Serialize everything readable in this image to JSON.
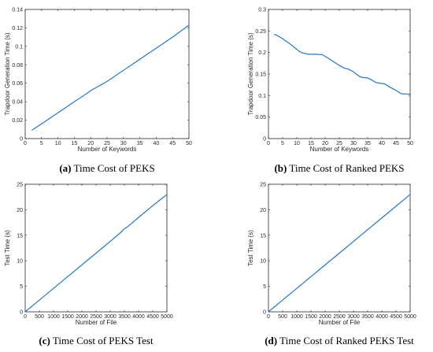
{
  "chart_data": [
    {
      "type": "line",
      "caption_label": "(a)",
      "caption_text": "Time Cost of PEKS",
      "xlabel": "Number of Keywords",
      "ylabel": "Trapdoor Generation Time (s)",
      "xlim": [
        0,
        50
      ],
      "ylim": [
        0,
        0.14
      ],
      "xticks": [
        "0",
        "5",
        "10",
        "15",
        "20",
        "25",
        "30",
        "35",
        "40",
        "45",
        "50"
      ],
      "yticks": [
        "0",
        "0.02",
        "0.04",
        "0.06",
        "0.08",
        "0.1",
        "0.12",
        "0.14"
      ],
      "grid": false,
      "series": [
        {
          "x": [
            2,
            5,
            10,
            15,
            18,
            20,
            22,
            25,
            30,
            35,
            40,
            45,
            50
          ],
          "y": [
            0.009,
            0.016,
            0.028,
            0.04,
            0.047,
            0.052,
            0.056,
            0.062,
            0.074,
            0.086,
            0.098,
            0.11,
            0.123
          ]
        }
      ]
    },
    {
      "type": "line",
      "caption_label": "(b)",
      "caption_text": "Time Cost of Ranked PEKS",
      "xlabel": "Number of Keywords",
      "ylabel": "Trapdoor Generation Time (s)",
      "xlim": [
        0,
        50
      ],
      "ylim": [
        0,
        0.3
      ],
      "xticks": [
        "0",
        "5",
        "10",
        "15",
        "20",
        "25",
        "30",
        "35",
        "40",
        "45",
        "50"
      ],
      "yticks": [
        "0",
        "0.05",
        "0.1",
        "0.15",
        "0.2",
        "0.25",
        "0.3"
      ],
      "grid": false,
      "series": [
        {
          "x": [
            2,
            3,
            5,
            8,
            11,
            12,
            14,
            17,
            19,
            20,
            22,
            25,
            27,
            28,
            30,
            32,
            33,
            35,
            37,
            38,
            40,
            41,
            43,
            45,
            47,
            50
          ],
          "y": [
            0.242,
            0.24,
            0.232,
            0.218,
            0.202,
            0.199,
            0.196,
            0.196,
            0.195,
            0.191,
            0.183,
            0.17,
            0.163,
            0.162,
            0.155,
            0.145,
            0.142,
            0.141,
            0.134,
            0.13,
            0.128,
            0.127,
            0.119,
            0.112,
            0.104,
            0.103
          ]
        }
      ]
    },
    {
      "type": "line",
      "caption_label": "(c)",
      "caption_text": "Time Cost of PEKS Test",
      "xlabel": "Number of File",
      "ylabel": "Test Time (s)",
      "xlim": [
        0,
        5000
      ],
      "ylim": [
        0,
        25
      ],
      "xticks": [
        "0",
        "500",
        "1000",
        "1500",
        "2000",
        "2500",
        "3000",
        "3500",
        "4000",
        "4500",
        "5000"
      ],
      "yticks": [
        "0",
        "5",
        "10",
        "15",
        "20",
        "25"
      ],
      "grid": false,
      "series": [
        {
          "x": [
            0,
            500,
            1000,
            1500,
            2000,
            2500,
            3000,
            3400,
            3500,
            3600,
            4000,
            4500,
            5000
          ],
          "y": [
            0,
            2.3,
            4.6,
            6.9,
            9.2,
            11.5,
            13.8,
            15.7,
            16.3,
            16.6,
            18.5,
            20.8,
            23.0
          ]
        }
      ]
    },
    {
      "type": "line",
      "caption_label": "(d)",
      "caption_text": "Time Cost of Ranked PEKS Test",
      "xlabel": "Number of File",
      "ylabel": "Test Time (s)",
      "xlim": [
        0,
        5000
      ],
      "ylim": [
        0,
        25
      ],
      "xticks": [
        "0",
        "500",
        "1000",
        "1500",
        "2000",
        "2500",
        "3000",
        "3500",
        "4000",
        "4500",
        "5000"
      ],
      "yticks": [
        "0",
        "5",
        "10",
        "15",
        "20",
        "25"
      ],
      "grid": false,
      "series": [
        {
          "x": [
            0,
            500,
            1000,
            1500,
            2000,
            2500,
            3000,
            3500,
            4000,
            4500,
            5000
          ],
          "y": [
            0,
            2.3,
            4.6,
            6.9,
            9.2,
            11.5,
            13.8,
            16.1,
            18.4,
            20.7,
            23.0
          ]
        }
      ]
    }
  ],
  "colors": {
    "line": "#1f77d4",
    "axis": "#262626",
    "text": "#000000"
  }
}
